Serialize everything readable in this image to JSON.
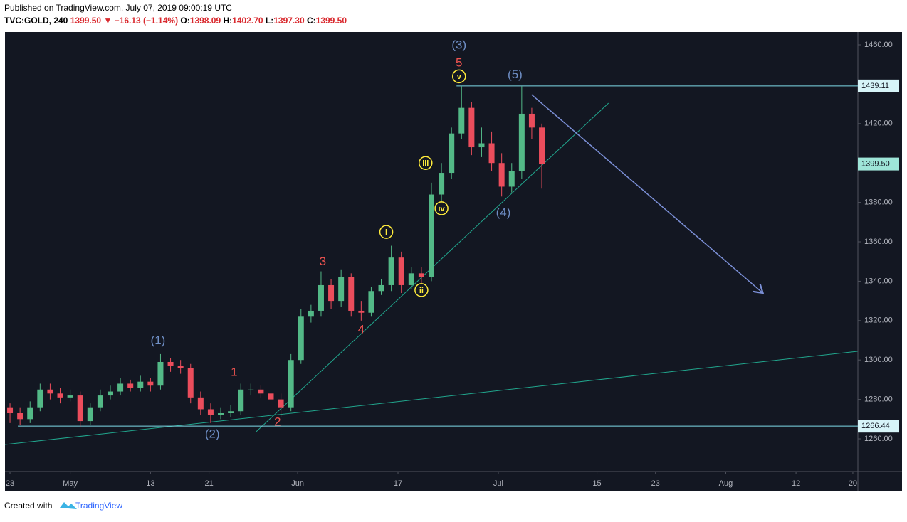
{
  "header": {
    "published": "Published on TradingView.com, July 07, 2019 09:00:19 UTC",
    "symbol": "TVC:GOLD, 240",
    "last": "1399.50",
    "arrow": "▼",
    "change": "−16.13 (−1.14%)",
    "o_label": "O:",
    "o": "1398.09",
    "h_label": "H:",
    "h": "1402.70",
    "l_label": "L:",
    "l": "1397.30",
    "c_label": "C:",
    "c": "1399.50"
  },
  "footer": {
    "created": "Created with",
    "brand": "TradingView"
  },
  "chart_data": {
    "type": "candlestick",
    "up_color": "#53b987",
    "down_color": "#eb4d5c",
    "grid": false,
    "xlim": [
      0,
      510
    ],
    "ylim": [
      1243.4,
      1466.5
    ],
    "yticks": [
      {
        "value": 1260,
        "label": "1260.00"
      },
      {
        "value": 1280,
        "label": "1280.00"
      },
      {
        "value": 1300,
        "label": "1300.00"
      },
      {
        "value": 1320,
        "label": "1320.00"
      },
      {
        "value": 1340,
        "label": "1340.00"
      },
      {
        "value": 1360,
        "label": "1360.00"
      },
      {
        "value": 1380,
        "label": "1380.00"
      },
      {
        "value": 1400,
        "label": "1400.00"
      },
      {
        "value": 1420,
        "label": "1420.00"
      },
      {
        "value": 1440,
        "label": "1440.00"
      },
      {
        "value": 1460,
        "label": "1460.00"
      }
    ],
    "xticks": [
      {
        "value": 3,
        "label": "23"
      },
      {
        "value": 39,
        "label": "May"
      },
      {
        "value": 87,
        "label": "13"
      },
      {
        "value": 122,
        "label": "21"
      },
      {
        "value": 175,
        "label": "Jun"
      },
      {
        "value": 235,
        "label": "17"
      },
      {
        "value": 295,
        "label": "Jul"
      },
      {
        "value": 354,
        "label": "15"
      },
      {
        "value": 389,
        "label": "23"
      },
      {
        "value": 431,
        "label": "Aug"
      },
      {
        "value": 473,
        "label": "12"
      },
      {
        "value": 507,
        "label": "20"
      }
    ],
    "x": [
      3,
      9,
      15,
      21,
      27,
      33,
      39,
      45,
      51,
      57,
      63,
      69,
      75,
      81,
      87,
      93,
      99,
      105,
      111,
      117,
      123,
      129,
      135,
      141,
      147,
      153,
      159,
      165,
      171,
      177,
      183,
      189,
      195,
      201,
      207,
      213,
      219,
      225,
      231,
      237,
      243,
      249,
      255,
      261,
      267,
      273,
      279,
      285,
      291,
      297,
      303,
      309,
      315,
      321
    ],
    "open": [
      1276,
      1273,
      1270,
      1276,
      1285,
      1283,
      1281,
      1282,
      1269,
      1276,
      1282,
      1284,
      1288,
      1286,
      1289,
      1287,
      1299,
      1297,
      1296,
      1281,
      1275,
      1272,
      1273,
      1274,
      1285,
      1285,
      1283,
      1280,
      1276,
      1300,
      1322,
      1325,
      1338,
      1330,
      1342,
      1325,
      1324,
      1335,
      1338,
      1352,
      1338,
      1344,
      1342,
      1384,
      1395,
      1415,
      1428,
      1408,
      1410,
      1400,
      1388,
      1396,
      1425,
      1418
    ],
    "high": [
      1278,
      1276,
      1279,
      1288,
      1288,
      1286,
      1285,
      1284,
      1278,
      1285,
      1287,
      1291,
      1290,
      1292,
      1291,
      1303,
      1301,
      1300,
      1298,
      1284,
      1278,
      1276,
      1277,
      1288,
      1288,
      1287,
      1285,
      1283,
      1303,
      1326,
      1328,
      1345,
      1341,
      1346,
      1344,
      1330,
      1337,
      1341,
      1358,
      1355,
      1347,
      1347,
      1390,
      1400,
      1418,
      1439,
      1431,
      1418,
      1416,
      1405,
      1400,
      1439,
      1428,
      1420
    ],
    "low": [
      1268,
      1267,
      1268,
      1274,
      1280,
      1278,
      1279,
      1266,
      1267,
      1274,
      1280,
      1282,
      1284,
      1284,
      1284,
      1285,
      1294,
      1293,
      1278,
      1272,
      1268,
      1270,
      1271,
      1272,
      1282,
      1281,
      1277,
      1271,
      1274,
      1298,
      1319,
      1322,
      1326,
      1327,
      1322,
      1320,
      1322,
      1333,
      1335,
      1334,
      1336,
      1339,
      1340,
      1380,
      1392,
      1412,
      1404,
      1403,
      1396,
      1383,
      1385,
      1392,
      1412,
      1387
    ],
    "close": [
      1273,
      1270,
      1276,
      1285,
      1283,
      1281,
      1282,
      1269,
      1276,
      1282,
      1284,
      1288,
      1286,
      1289,
      1287,
      1299,
      1297,
      1296,
      1281,
      1275,
      1272,
      1273,
      1274,
      1285,
      1285,
      1283,
      1280,
      1276,
      1300,
      1322,
      1325,
      1338,
      1330,
      1342,
      1325,
      1324,
      1335,
      1338,
      1352,
      1338,
      1344,
      1342,
      1384,
      1395,
      1415,
      1428,
      1408,
      1410,
      1400,
      1388,
      1396,
      1425,
      1418,
      1399.5
    ],
    "current_price": {
      "value": 1399.5,
      "label": "1399.50"
    },
    "horizontal_lines": [
      {
        "value": 1439.11,
        "x_start": 270
      },
      {
        "value": 1266.44,
        "x_start": 7.7
      }
    ],
    "trend_lines": [
      {
        "x": [
          150.2,
          360.9
        ],
        "y": [
          1263.6,
          1430.4
        ]
      },
      {
        "x": [
          0,
          509.8
        ],
        "y": [
          1257.1,
          1304.4
        ]
      }
    ],
    "arrow": {
      "x": [
        314.9,
        453.2
      ],
      "y": [
        1434.7,
        1334.0
      ]
    },
    "annotations": [
      {
        "text": "(3)",
        "x": 271.5,
        "y": 1460,
        "color": "#6f8fc6"
      },
      {
        "text": "5",
        "x": 271.5,
        "y": 1451,
        "color": "#ef5350"
      },
      {
        "text": "v",
        "x": 271.5,
        "y": 1444,
        "color": "#ffeb3b",
        "circled": true
      },
      {
        "text": "(5)",
        "x": 305,
        "y": 1445,
        "color": "#6f8fc6"
      },
      {
        "text": "iii",
        "x": 251.5,
        "y": 1400,
        "color": "#ffeb3b",
        "circled": true
      },
      {
        "text": "iv",
        "x": 261,
        "y": 1377,
        "color": "#ffeb3b",
        "circled": true
      },
      {
        "text": "(4)",
        "x": 298,
        "y": 1375,
        "color": "#6f8fc6"
      },
      {
        "text": "i",
        "x": 228,
        "y": 1365,
        "color": "#ffeb3b",
        "circled": true
      },
      {
        "text": "ii",
        "x": 249,
        "y": 1335.5,
        "color": "#ffeb3b",
        "circled": true
      },
      {
        "text": "3",
        "x": 190,
        "y": 1350,
        "color": "#ef5350"
      },
      {
        "text": "4",
        "x": 213,
        "y": 1315.6,
        "color": "#ef5350"
      },
      {
        "text": "(1)",
        "x": 91.5,
        "y": 1310,
        "color": "#6f8fc6"
      },
      {
        "text": "1",
        "x": 137,
        "y": 1294,
        "color": "#ef5350"
      },
      {
        "text": "(2)",
        "x": 124,
        "y": 1262.5,
        "color": "#6f8fc6"
      },
      {
        "text": "2",
        "x": 163,
        "y": 1268.7,
        "color": "#ef5350"
      }
    ]
  }
}
